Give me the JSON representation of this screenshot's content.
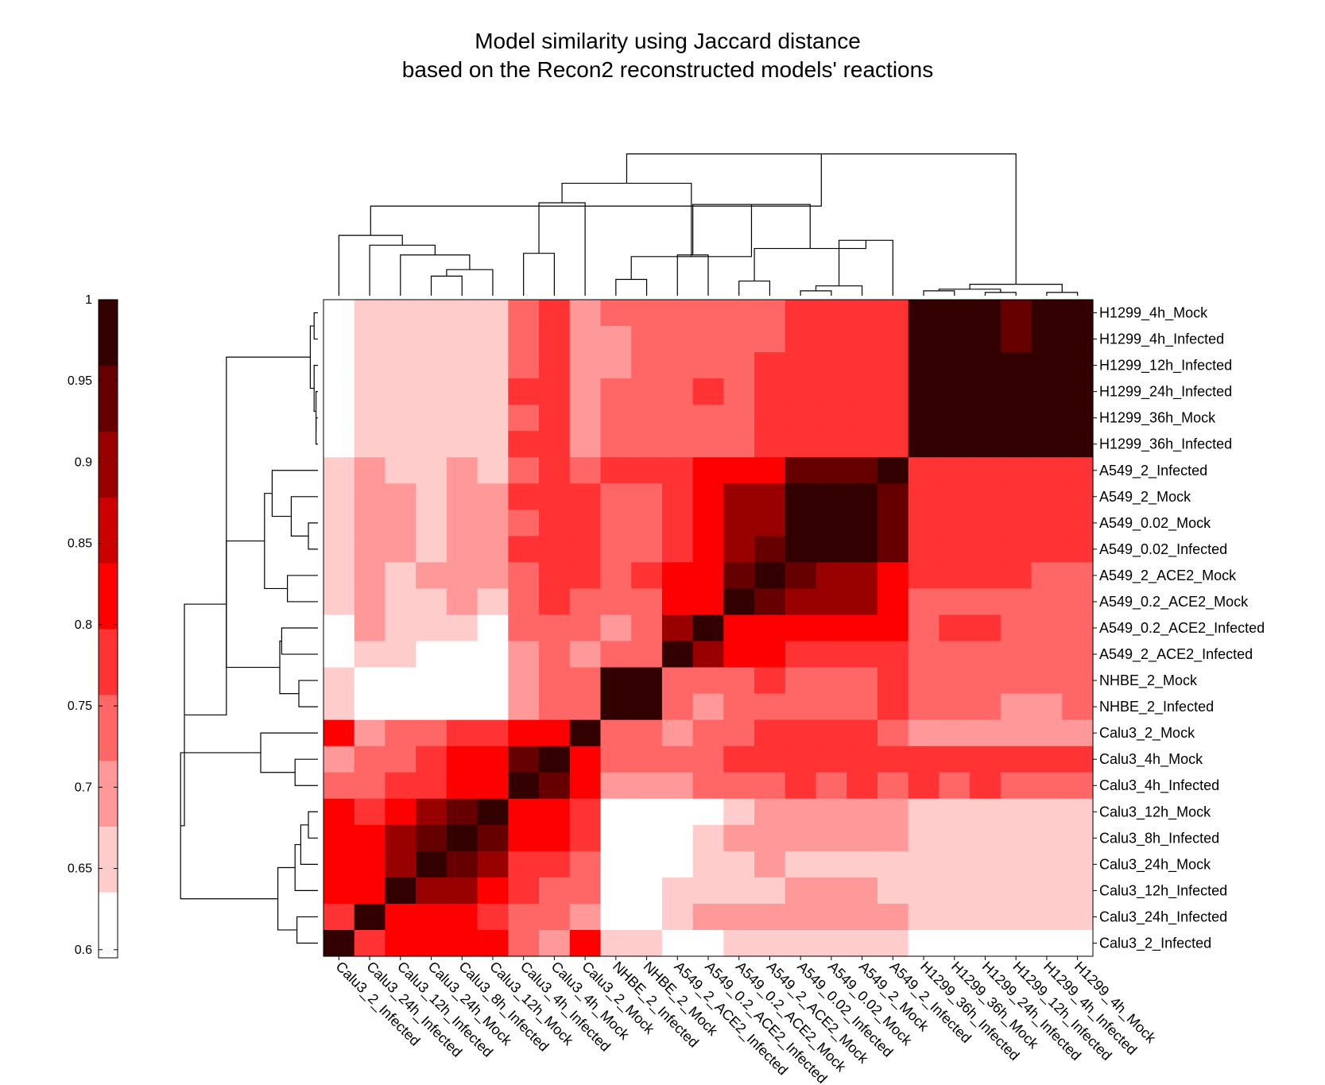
{
  "chart_data": {
    "type": "heatmap",
    "title": "Model similarity using Jaccard distance",
    "subtitle": "based on the Recon2 reconstructed models' reactions",
    "row_labels": [
      "H1299_4h_Mock",
      "H1299_4h_Infected",
      "H1299_12h_Infected",
      "H1299_24h_Infected",
      "H1299_36h_Mock",
      "H1299_36h_Infected",
      "A549_2_Infected",
      "A549_2_Mock",
      "A549_0.02_Mock",
      "A549_0.02_Infected",
      "A549_2_ACE2_Mock",
      "A549_0.2_ACE2_Mock",
      "A549_0.2_ACE2_Infected",
      "A549_2_ACE2_Infected",
      "NHBE_2_Mock",
      "NHBE_2_Infected",
      "Calu3_2_Mock",
      "Calu3_4h_Mock",
      "Calu3_4h_Infected",
      "Calu3_12h_Mock",
      "Calu3_8h_Infected",
      "Calu3_24h_Mock",
      "Calu3_12h_Infected",
      "Calu3_24h_Infected",
      "Calu3_2_Infected"
    ],
    "col_labels": [
      "Calu3_2_Infected",
      "Calu3_24h_Infected",
      "Calu3_12h_Infected",
      "Calu3_24h_Mock",
      "Calu3_8h_Infected",
      "Calu3_12h_Mock",
      "Calu3_4h_Infected",
      "Calu3_4h_Mock",
      "Calu3_2_Mock",
      "NHBE_2_Infected",
      "NHBE_2_Mock",
      "A549_2_ACE2_Infected",
      "A549_0.2_ACE2_Infected",
      "A549_0.2_ACE2_Mock",
      "A549_2_ACE2_Mock",
      "A549_0.02_Infected",
      "A549_0.02_Mock",
      "A549_2_Mock",
      "A549_2_Infected",
      "H1299_36h_Infected",
      "H1299_36h_Mock",
      "H1299_24h_Infected",
      "H1299_12h_Infected",
      "H1299_4h_Infected",
      "H1299_4h_Mock"
    ],
    "values": [
      [
        0.62,
        0.65,
        0.65,
        0.65,
        0.65,
        0.65,
        0.74,
        0.77,
        0.71,
        0.74,
        0.74,
        0.74,
        0.74,
        0.74,
        0.74,
        0.77,
        0.77,
        0.77,
        0.77,
        0.97,
        0.97,
        0.97,
        0.95,
        0.99,
        0.99
      ],
      [
        0.62,
        0.65,
        0.65,
        0.65,
        0.65,
        0.65,
        0.74,
        0.77,
        0.71,
        0.71,
        0.74,
        0.74,
        0.74,
        0.74,
        0.74,
        0.77,
        0.77,
        0.77,
        0.77,
        0.97,
        0.99,
        0.99,
        0.95,
        0.99,
        0.99
      ],
      [
        0.62,
        0.65,
        0.65,
        0.65,
        0.65,
        0.65,
        0.74,
        0.77,
        0.71,
        0.71,
        0.74,
        0.74,
        0.74,
        0.74,
        0.77,
        0.77,
        0.77,
        0.77,
        0.77,
        0.99,
        0.99,
        0.99,
        0.99,
        0.97,
        0.97
      ],
      [
        0.62,
        0.65,
        0.65,
        0.65,
        0.65,
        0.65,
        0.77,
        0.77,
        0.71,
        0.74,
        0.74,
        0.74,
        0.77,
        0.74,
        0.77,
        0.77,
        0.77,
        0.77,
        0.77,
        0.99,
        0.99,
        0.99,
        0.99,
        0.99,
        0.97
      ],
      [
        0.62,
        0.65,
        0.65,
        0.65,
        0.65,
        0.65,
        0.74,
        0.77,
        0.71,
        0.74,
        0.74,
        0.74,
        0.74,
        0.74,
        0.77,
        0.77,
        0.77,
        0.77,
        0.77,
        0.99,
        0.99,
        0.99,
        0.99,
        0.99,
        0.97
      ],
      [
        0.62,
        0.65,
        0.65,
        0.65,
        0.65,
        0.65,
        0.77,
        0.77,
        0.71,
        0.74,
        0.74,
        0.74,
        0.74,
        0.74,
        0.77,
        0.77,
        0.77,
        0.77,
        0.77,
        0.99,
        0.99,
        0.97,
        0.97,
        0.97,
        0.97
      ],
      [
        0.65,
        0.69,
        0.65,
        0.65,
        0.69,
        0.65,
        0.74,
        0.77,
        0.74,
        0.77,
        0.77,
        0.77,
        0.81,
        0.81,
        0.81,
        0.92,
        0.92,
        0.92,
        0.99,
        0.77,
        0.77,
        0.77,
        0.77,
        0.77,
        0.77
      ],
      [
        0.65,
        0.69,
        0.69,
        0.65,
        0.69,
        0.69,
        0.77,
        0.77,
        0.77,
        0.74,
        0.74,
        0.77,
        0.81,
        0.88,
        0.88,
        0.97,
        0.97,
        0.99,
        0.92,
        0.77,
        0.77,
        0.77,
        0.77,
        0.77,
        0.77
      ],
      [
        0.65,
        0.69,
        0.69,
        0.65,
        0.69,
        0.69,
        0.74,
        0.77,
        0.77,
        0.74,
        0.74,
        0.77,
        0.81,
        0.88,
        0.88,
        0.99,
        0.99,
        0.97,
        0.92,
        0.77,
        0.77,
        0.77,
        0.77,
        0.77,
        0.77
      ],
      [
        0.65,
        0.69,
        0.69,
        0.65,
        0.69,
        0.69,
        0.77,
        0.77,
        0.77,
        0.74,
        0.74,
        0.77,
        0.81,
        0.88,
        0.92,
        0.99,
        0.99,
        0.97,
        0.92,
        0.77,
        0.77,
        0.77,
        0.77,
        0.77,
        0.77
      ],
      [
        0.65,
        0.69,
        0.65,
        0.71,
        0.71,
        0.71,
        0.74,
        0.77,
        0.77,
        0.74,
        0.77,
        0.81,
        0.81,
        0.92,
        0.99,
        0.92,
        0.88,
        0.88,
        0.81,
        0.77,
        0.77,
        0.77,
        0.77,
        0.74,
        0.74
      ],
      [
        0.65,
        0.69,
        0.65,
        0.65,
        0.71,
        0.65,
        0.74,
        0.77,
        0.74,
        0.74,
        0.74,
        0.81,
        0.81,
        0.99,
        0.92,
        0.88,
        0.88,
        0.88,
        0.81,
        0.74,
        0.74,
        0.74,
        0.74,
        0.74,
        0.74
      ],
      [
        0.62,
        0.69,
        0.65,
        0.65,
        0.65,
        0.62,
        0.74,
        0.74,
        0.74,
        0.71,
        0.74,
        0.88,
        0.99,
        0.81,
        0.81,
        0.81,
        0.81,
        0.81,
        0.81,
        0.74,
        0.77,
        0.77,
        0.74,
        0.74,
        0.74
      ],
      [
        0.62,
        0.65,
        0.65,
        0.62,
        0.62,
        0.62,
        0.71,
        0.74,
        0.71,
        0.74,
        0.74,
        0.99,
        0.88,
        0.81,
        0.81,
        0.77,
        0.77,
        0.77,
        0.77,
        0.74,
        0.74,
        0.74,
        0.74,
        0.74,
        0.74
      ],
      [
        0.65,
        0.62,
        0.62,
        0.62,
        0.62,
        0.62,
        0.71,
        0.74,
        0.74,
        0.97,
        0.99,
        0.74,
        0.74,
        0.74,
        0.77,
        0.74,
        0.74,
        0.74,
        0.77,
        0.74,
        0.74,
        0.74,
        0.74,
        0.74,
        0.74
      ],
      [
        0.65,
        0.62,
        0.62,
        0.62,
        0.62,
        0.62,
        0.71,
        0.74,
        0.74,
        0.99,
        0.97,
        0.74,
        0.71,
        0.74,
        0.74,
        0.74,
        0.74,
        0.74,
        0.77,
        0.74,
        0.74,
        0.74,
        0.71,
        0.71,
        0.74
      ],
      [
        0.81,
        0.71,
        0.74,
        0.74,
        0.77,
        0.77,
        0.81,
        0.81,
        0.99,
        0.74,
        0.74,
        0.71,
        0.74,
        0.74,
        0.77,
        0.77,
        0.77,
        0.77,
        0.74,
        0.71,
        0.71,
        0.71,
        0.71,
        0.71,
        0.71
      ],
      [
        0.71,
        0.74,
        0.74,
        0.77,
        0.81,
        0.81,
        0.92,
        0.99,
        0.81,
        0.74,
        0.74,
        0.74,
        0.74,
        0.77,
        0.77,
        0.77,
        0.77,
        0.77,
        0.77,
        0.77,
        0.77,
        0.77,
        0.77,
        0.77,
        0.77
      ],
      [
        0.74,
        0.74,
        0.77,
        0.77,
        0.81,
        0.81,
        0.99,
        0.92,
        0.81,
        0.71,
        0.71,
        0.71,
        0.74,
        0.74,
        0.74,
        0.77,
        0.74,
        0.77,
        0.74,
        0.77,
        0.74,
        0.77,
        0.74,
        0.74,
        0.74
      ],
      [
        0.81,
        0.77,
        0.81,
        0.88,
        0.92,
        0.99,
        0.81,
        0.81,
        0.77,
        0.62,
        0.62,
        0.62,
        0.62,
        0.65,
        0.69,
        0.69,
        0.69,
        0.69,
        0.69,
        0.65,
        0.65,
        0.65,
        0.65,
        0.65,
        0.65
      ],
      [
        0.81,
        0.81,
        0.88,
        0.92,
        0.99,
        0.92,
        0.81,
        0.81,
        0.77,
        0.62,
        0.62,
        0.62,
        0.65,
        0.69,
        0.69,
        0.69,
        0.69,
        0.69,
        0.69,
        0.65,
        0.65,
        0.65,
        0.65,
        0.65,
        0.65
      ],
      [
        0.81,
        0.81,
        0.88,
        0.99,
        0.92,
        0.88,
        0.77,
        0.77,
        0.74,
        0.62,
        0.62,
        0.62,
        0.65,
        0.65,
        0.69,
        0.65,
        0.65,
        0.65,
        0.65,
        0.65,
        0.65,
        0.65,
        0.65,
        0.65,
        0.65
      ],
      [
        0.81,
        0.81,
        0.99,
        0.88,
        0.88,
        0.81,
        0.77,
        0.74,
        0.74,
        0.62,
        0.62,
        0.65,
        0.65,
        0.65,
        0.65,
        0.69,
        0.69,
        0.69,
        0.65,
        0.65,
        0.65,
        0.65,
        0.65,
        0.65,
        0.65
      ],
      [
        0.77,
        0.99,
        0.81,
        0.81,
        0.81,
        0.77,
        0.74,
        0.74,
        0.71,
        0.62,
        0.62,
        0.65,
        0.69,
        0.69,
        0.69,
        0.69,
        0.69,
        0.69,
        0.69,
        0.65,
        0.65,
        0.65,
        0.65,
        0.65,
        0.65
      ],
      [
        0.99,
        0.77,
        0.81,
        0.81,
        0.81,
        0.81,
        0.74,
        0.71,
        0.81,
        0.65,
        0.65,
        0.62,
        0.62,
        0.65,
        0.65,
        0.65,
        0.65,
        0.65,
        0.65,
        0.62,
        0.62,
        0.62,
        0.62,
        0.62,
        0.62
      ]
    ],
    "color_scale": {
      "min": 0.595,
      "max": 1.0,
      "colors": [
        "#ffffff",
        "#ffcccc",
        "#ff9999",
        "#ff6666",
        "#ff3333",
        "#ff0000",
        "#cc0000",
        "#990000",
        "#660000",
        "#330000"
      ],
      "ticks": [
        1,
        0.95,
        0.9,
        0.85,
        0.8,
        0.75,
        0.7,
        0.65,
        0.6
      ]
    },
    "legend_position": "left",
    "top_dendrogram": true,
    "left_dendrogram": true
  }
}
